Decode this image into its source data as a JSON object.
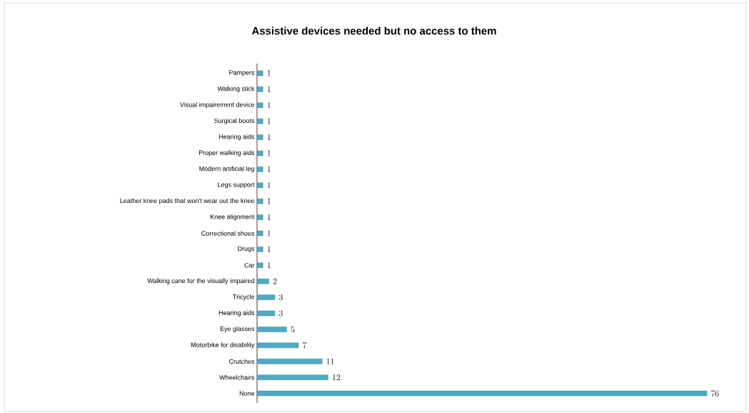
{
  "chart_data": {
    "type": "bar",
    "orientation": "horizontal",
    "title": "Assistive devices needed but no access to them",
    "categories": [
      "Pampers",
      "Walking stick",
      "Visual impairement device",
      "Surgical boots",
      "Hearing aids",
      "Proper walking aids",
      "Modern artificial leg",
      "Legs support",
      "Leather knee pads that won't wear out the knee",
      "Knee alignment",
      "Correctional shoes",
      "Drugs",
      "Car",
      "Walking cane for the visually impaired",
      "Tricycle",
      "Hearing aids",
      "Eye glasses",
      "Motorbike for disability",
      "Crutches",
      "Wheelchairs",
      "None"
    ],
    "values": [
      1,
      1,
      1,
      1,
      1,
      1,
      1,
      1,
      1,
      1,
      1,
      1,
      1,
      2,
      3,
      3,
      5,
      7,
      11,
      12,
      76
    ],
    "color": "#4bacc6",
    "data_labels": true
  }
}
